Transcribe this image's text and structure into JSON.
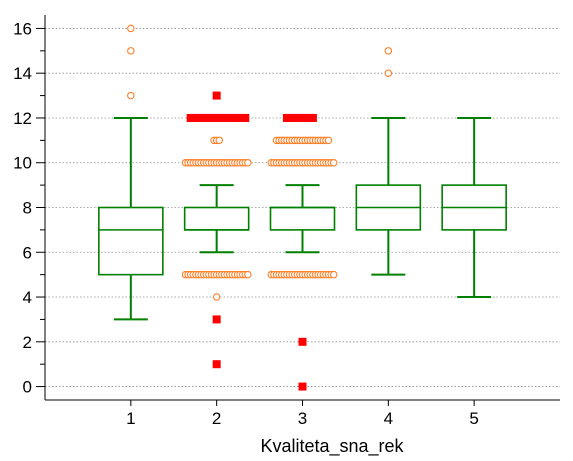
{
  "chart_data": {
    "type": "box",
    "title": "",
    "xlabel": "Kvaliteta_sna_rek",
    "ylabel": "",
    "categories": [
      "1",
      "2",
      "3",
      "4",
      "5"
    ],
    "ylim": [
      -0.6,
      16.6
    ],
    "xlim": [
      0,
      6
    ],
    "yticks": [
      "0",
      "2",
      "4",
      "6",
      "8",
      "10",
      "12",
      "14",
      "16"
    ],
    "grid": true,
    "colors": {
      "box": "#008000",
      "outlier": "#ff7f27",
      "far_outlier": "#ff0000",
      "grid": "#8c8c8c"
    },
    "boxes": [
      {
        "category": "1",
        "whisker_low": 3,
        "q1": 5,
        "median": 7,
        "q3": 8,
        "whisker_high": 12
      },
      {
        "category": "2",
        "whisker_low": 6,
        "q1": 7,
        "median": 7,
        "q3": 8,
        "whisker_high": 9
      },
      {
        "category": "3",
        "whisker_low": 6,
        "q1": 7,
        "median": 8,
        "q3": 8,
        "whisker_high": 9
      },
      {
        "category": "4",
        "whisker_low": 5,
        "q1": 7,
        "median": 8,
        "q3": 9,
        "whisker_high": 12
      },
      {
        "category": "5",
        "whisker_low": 4,
        "q1": 7,
        "median": 8,
        "q3": 9,
        "whisker_high": 12
      }
    ],
    "outliers": [
      {
        "category": "1",
        "y": 13
      },
      {
        "category": "1",
        "y": 15
      },
      {
        "category": "1",
        "y": 16
      },
      {
        "category": "2",
        "y": 4
      },
      {
        "category": "2",
        "y": 5
      },
      {
        "category": "2",
        "y": 10
      },
      {
        "category": "2",
        "y": 11
      },
      {
        "category": "3",
        "y": 5
      },
      {
        "category": "3",
        "y": 10
      },
      {
        "category": "3",
        "y": 11
      },
      {
        "category": "4",
        "y": 14
      },
      {
        "category": "4",
        "y": 15
      }
    ],
    "far_outliers": [
      {
        "category": "2",
        "y": 1
      },
      {
        "category": "2",
        "y": 3
      },
      {
        "category": "2",
        "y": 12
      },
      {
        "category": "2",
        "y": 13
      },
      {
        "category": "3",
        "y": 0
      },
      {
        "category": "3",
        "y": 2
      },
      {
        "category": "3",
        "y": 12
      }
    ]
  }
}
